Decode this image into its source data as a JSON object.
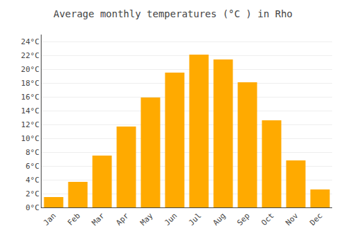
{
  "chart_data": {
    "type": "bar",
    "title": "Average monthly temperatures (°C ) in Rho",
    "categories": [
      "Jan",
      "Feb",
      "Mar",
      "Apr",
      "May",
      "Jun",
      "Jul",
      "Aug",
      "Sep",
      "Oct",
      "Nov",
      "Dec"
    ],
    "values": [
      1.5,
      3.7,
      7.5,
      11.7,
      15.9,
      19.5,
      22.1,
      21.4,
      18.1,
      12.6,
      6.8,
      2.6
    ],
    "color": "#FFAA00",
    "ylim": [
      0,
      25
    ],
    "yticks": [
      {
        "value": 0,
        "label": "0°C"
      },
      {
        "value": 2,
        "label": "2°C"
      },
      {
        "value": 4,
        "label": "4°C"
      },
      {
        "value": 6,
        "label": "6°C"
      },
      {
        "value": 8,
        "label": "8°C"
      },
      {
        "value": 10,
        "label": "10°C"
      },
      {
        "value": 12,
        "label": "12°C"
      },
      {
        "value": 14,
        "label": "14°C"
      },
      {
        "value": 16,
        "label": "16°C"
      },
      {
        "value": 18,
        "label": "18°C"
      },
      {
        "value": 20,
        "label": "20°C"
      },
      {
        "value": 22,
        "label": "22°C"
      },
      {
        "value": 24,
        "label": "24°C"
      }
    ],
    "grid": true
  }
}
